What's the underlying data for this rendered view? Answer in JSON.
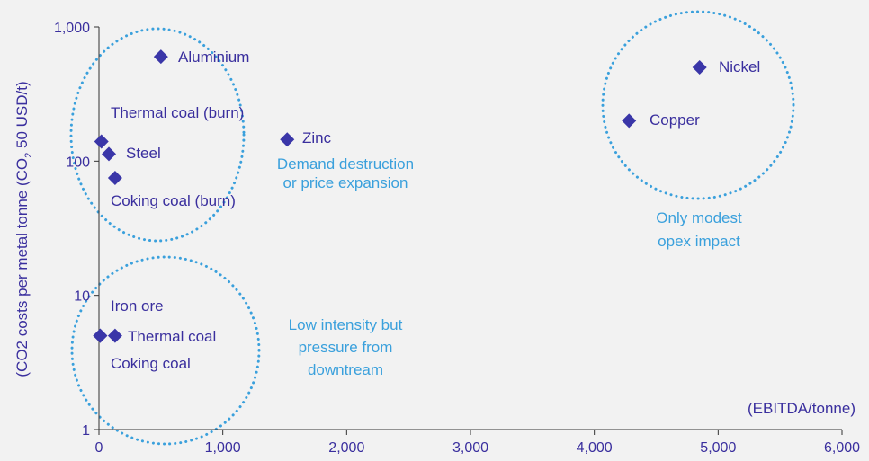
{
  "chart_data": {
    "type": "scatter",
    "title": "",
    "xlabel": "(EBITDA/tonne)",
    "ylabel_parts": [
      "(CO2 costs per metal tonne (CO",
      "2",
      " 50 USD/t)"
    ],
    "xlim": [
      0,
      6000
    ],
    "ylim": [
      1,
      1000
    ],
    "yscale": "log",
    "x_ticks": [
      0,
      1000,
      2000,
      3000,
      4000,
      5000,
      6000
    ],
    "x_tick_labels": [
      "0",
      "1,000",
      "2,000",
      "3,000",
      "4,000",
      "5,000",
      "6,000"
    ],
    "y_ticks": [
      1,
      10,
      100,
      1000
    ],
    "y_tick_labels": [
      "1",
      "10",
      "100",
      "1,000"
    ],
    "grid": false,
    "points": [
      {
        "label": "Aluminium",
        "x": 500,
        "y": 600
      },
      {
        "label": "Nickel",
        "x": 4850,
        "y": 500
      },
      {
        "label": "Copper",
        "x": 4280,
        "y": 200
      },
      {
        "label": "Zinc",
        "x": 1520,
        "y": 145
      },
      {
        "label": "Thermal coal (burn)",
        "x": 20,
        "y": 140
      },
      {
        "label": "Steel",
        "x": 80,
        "y": 113
      },
      {
        "label": "Coking coal (burn)",
        "x": 130,
        "y": 75
      },
      {
        "label": "Iron ore",
        "x": 10,
        "y": 5
      },
      {
        "label": "Thermal coal",
        "x": 130,
        "y": 5
      },
      {
        "label": "Coking coal",
        "x": 10,
        "y": 5
      }
    ],
    "annotations": [
      {
        "lines": [
          "Demand destruction",
          "or price expansion"
        ]
      },
      {
        "lines": [
          "Only modest",
          "opex impact"
        ]
      },
      {
        "lines": [
          "Low intensity but",
          "pressure from",
          "downtream"
        ]
      }
    ],
    "colors": {
      "marker": "#3a36a8",
      "text": "#3a2f9e",
      "annotation": "#3aa0dc",
      "axis": "#333333",
      "background": "#f2f2f2"
    }
  }
}
